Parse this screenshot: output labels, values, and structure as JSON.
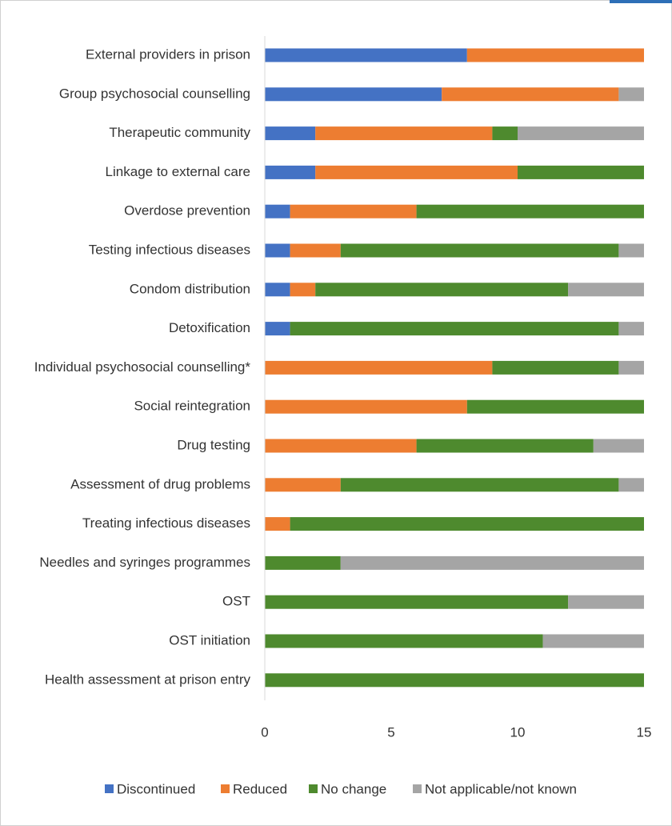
{
  "chart_data": {
    "type": "stacked-barh",
    "categories": [
      "External providers in prison",
      "Group psychosocial counselling",
      "Therapeutic community",
      "Linkage to external care",
      "Overdose prevention",
      "Testing infectious diseases",
      "Condom distribution",
      "Detoxification",
      "Individual psychosocial counselling*",
      "Social reintegration",
      "Drug testing",
      "Assessment of drug problems",
      "Treating infectious diseases",
      "Needles and syringes programmes",
      "OST",
      "OST initiation",
      "Health assessment at prison entry"
    ],
    "series": [
      {
        "name": "Discontinued",
        "color": "#4472c4",
        "values": [
          8,
          7,
          2,
          2,
          1,
          1,
          1,
          1,
          0,
          0,
          0,
          0,
          0,
          0,
          0,
          0,
          0
        ]
      },
      {
        "name": "Reduced",
        "color": "#ed7d31",
        "values": [
          7,
          7,
          7,
          8,
          5,
          2,
          1,
          0,
          9,
          8,
          6,
          3,
          1,
          0,
          0,
          0,
          0
        ]
      },
      {
        "name": "No change",
        "color": "#4e8a2e",
        "values": [
          0,
          0,
          1,
          5,
          9,
          11,
          10,
          13,
          5,
          7,
          7,
          11,
          14,
          3,
          12,
          11,
          15
        ]
      },
      {
        "name": "Not applicable/not known",
        "color": "#a5a5a5",
        "values": [
          0,
          1,
          5,
          0,
          0,
          1,
          3,
          1,
          1,
          0,
          2,
          1,
          0,
          12,
          3,
          4,
          0
        ]
      }
    ],
    "xlim": [
      0,
      15
    ],
    "xticks": [
      0,
      5,
      10,
      15
    ],
    "legend": "bottom"
  }
}
